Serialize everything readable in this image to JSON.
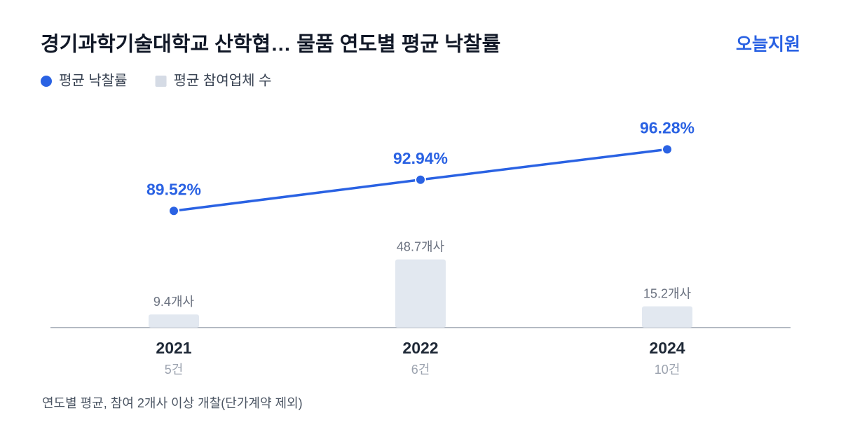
{
  "chart_data": {
    "type": "bar-line",
    "title": "경기과학기술대학교 산학협… 물품 연도별 평균 낙찰률",
    "brand": "오늘지원",
    "categories": [
      "2021",
      "2022",
      "2024"
    ],
    "category_sublabels": [
      "5건",
      "6건",
      "10건"
    ],
    "series": [
      {
        "name": "평균 낙찰률",
        "type": "line",
        "axis": "y2",
        "color": "#2a62e3",
        "values": [
          89.52,
          92.94,
          96.28
        ],
        "value_labels": [
          "89.52%",
          "92.94%",
          "96.28%"
        ]
      },
      {
        "name": "평균 참여업체 수",
        "type": "bar",
        "color": "#e2e8f0",
        "values": [
          9.4,
          48.7,
          15.2
        ],
        "value_labels": [
          "9.4개사",
          "48.7개사",
          "15.2개사"
        ]
      }
    ],
    "ylim": [
      0,
      100
    ],
    "y2lim": [
      80,
      100
    ],
    "footnote": "연도별 평균, 참여 2개사 이상 개찰(단가계약 제외)"
  }
}
